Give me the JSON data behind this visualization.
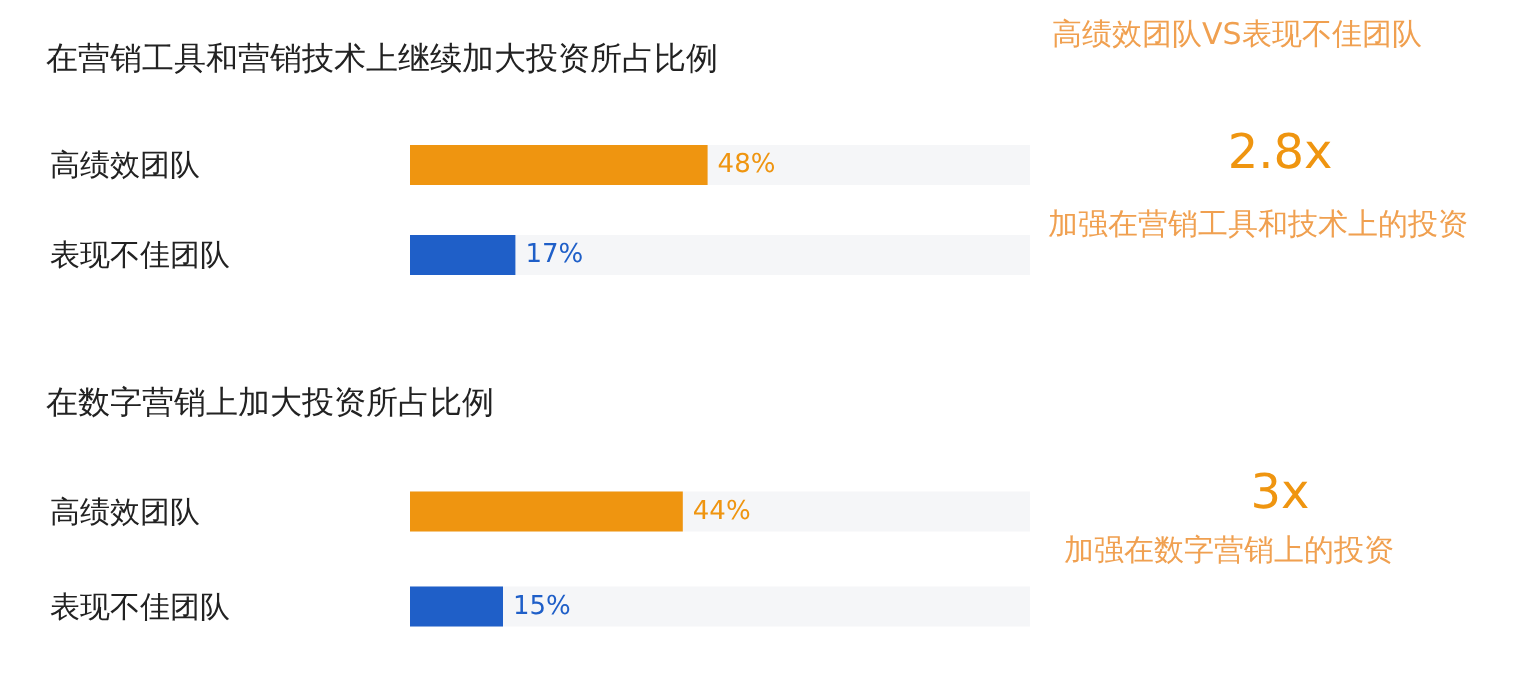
{
  "chart_data": [
    {
      "type": "bar",
      "orientation": "horizontal",
      "title": "在营销工具和营销技术上继续加大投资所占比例",
      "categories": [
        "高绩效团队",
        "表现不佳团队"
      ],
      "values": [
        48,
        17
      ],
      "colors": [
        "#ef9510",
        "#1f5fc8"
      ],
      "value_labels": [
        "48%",
        "17%"
      ],
      "xlim": [
        0,
        100
      ],
      "tick_labels": false
    },
    {
      "type": "bar",
      "orientation": "horizontal",
      "title": "在数字营销上加大投资所占比例",
      "categories": [
        "高绩效团队",
        "表现不佳团队"
      ],
      "values": [
        44,
        15
      ],
      "colors": [
        "#ef9510",
        "#1f5fc8"
      ],
      "value_labels": [
        "44%",
        "15%"
      ],
      "xlim": [
        0,
        100
      ],
      "tick_labels": false
    },
    {
      "type": "other",
      "title": "高绩效团队VS表现不佳团队",
      "annotations": [
        "2.8x",
        "加强在营销工具和技术上的投资",
        "3x",
        "加强在数字营销上的投资"
      ]
    }
  ]
}
